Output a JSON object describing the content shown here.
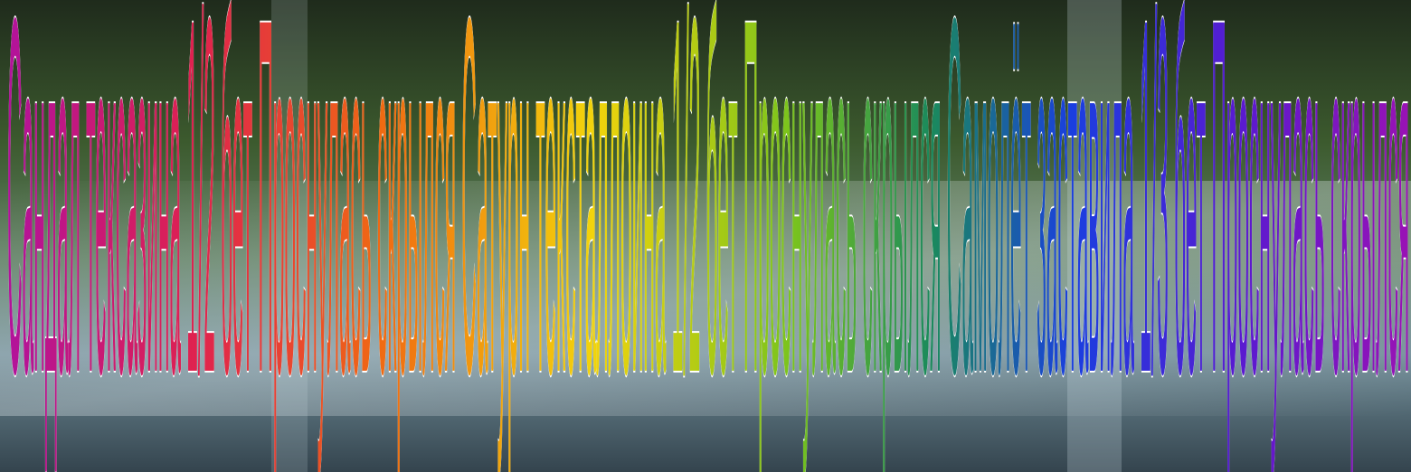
{
  "banner": {
    "segments": [
      "Сандал тексазина 1/2 бет Проснулась скрылся",
      "Сатурн тексталлоина 1/2 бет Проснулась скрылся",
      "Самолёт заставила 1/3 бет Проснулась скрылся"
    ]
  }
}
